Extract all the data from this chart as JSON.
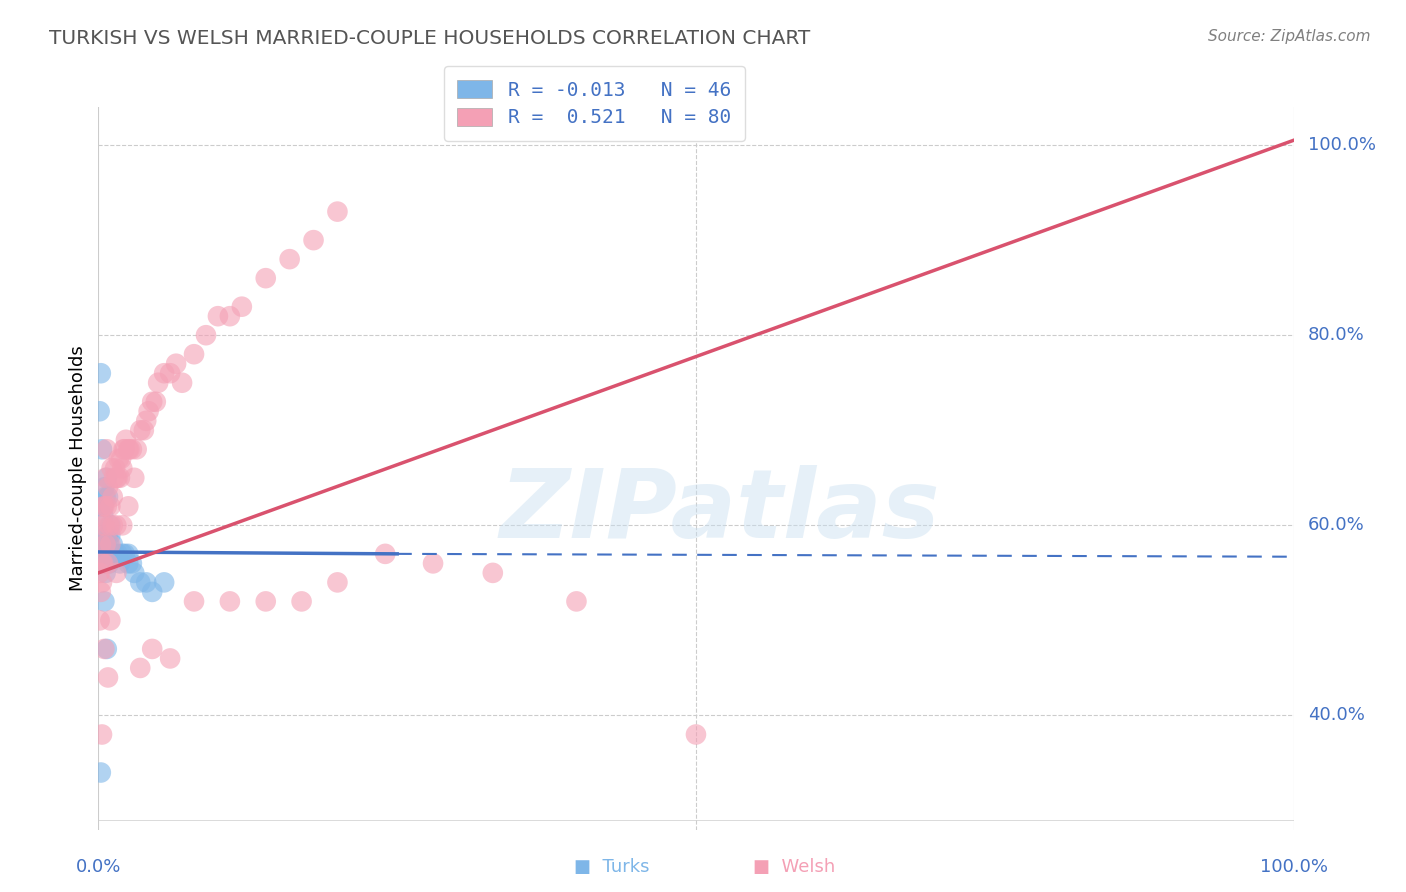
{
  "title": "TURKISH VS WELSH MARRIED-COUPLE HOUSEHOLDS CORRELATION CHART",
  "source": "Source: ZipAtlas.com",
  "ylabel": "Married-couple Households",
  "watermark": "ZIPatlas",
  "turks_R": -0.013,
  "turks_N": 46,
  "welsh_R": 0.521,
  "welsh_N": 80,
  "turks_color": "#7eb6e8",
  "welsh_color": "#f4a0b5",
  "turks_line_color": "#4472c4",
  "welsh_line_color": "#d9526e",
  "blue_text_color": "#4472c4",
  "title_color": "#555555",
  "grid_color": "#cccccc",
  "turks_x": [
    0.001,
    0.001,
    0.002,
    0.002,
    0.002,
    0.003,
    0.003,
    0.003,
    0.004,
    0.004,
    0.004,
    0.005,
    0.005,
    0.005,
    0.006,
    0.006,
    0.006,
    0.007,
    0.007,
    0.007,
    0.008,
    0.008,
    0.009,
    0.009,
    0.01,
    0.011,
    0.012,
    0.013,
    0.014,
    0.016,
    0.018,
    0.02,
    0.022,
    0.025,
    0.025,
    0.028,
    0.03,
    0.035,
    0.04,
    0.045,
    0.002,
    0.007,
    0.005,
    0.01,
    0.055,
    0.002
  ],
  "turks_y": [
    0.72,
    0.57,
    0.57,
    0.56,
    0.62,
    0.68,
    0.58,
    0.56,
    0.62,
    0.59,
    0.61,
    0.64,
    0.57,
    0.56,
    0.63,
    0.58,
    0.55,
    0.65,
    0.57,
    0.56,
    0.63,
    0.59,
    0.58,
    0.56,
    0.59,
    0.57,
    0.58,
    0.57,
    0.57,
    0.57,
    0.56,
    0.57,
    0.57,
    0.56,
    0.57,
    0.56,
    0.55,
    0.54,
    0.54,
    0.53,
    0.76,
    0.47,
    0.52,
    0.6,
    0.54,
    0.34
  ],
  "welsh_x": [
    0.001,
    0.001,
    0.002,
    0.002,
    0.003,
    0.003,
    0.003,
    0.004,
    0.004,
    0.005,
    0.005,
    0.006,
    0.006,
    0.007,
    0.007,
    0.008,
    0.008,
    0.009,
    0.01,
    0.01,
    0.011,
    0.012,
    0.012,
    0.013,
    0.014,
    0.015,
    0.015,
    0.016,
    0.017,
    0.018,
    0.019,
    0.02,
    0.021,
    0.022,
    0.023,
    0.025,
    0.026,
    0.028,
    0.03,
    0.032,
    0.035,
    0.038,
    0.04,
    0.042,
    0.045,
    0.048,
    0.05,
    0.055,
    0.06,
    0.065,
    0.07,
    0.08,
    0.09,
    0.1,
    0.11,
    0.12,
    0.14,
    0.16,
    0.18,
    0.2,
    0.003,
    0.005,
    0.008,
    0.01,
    0.015,
    0.02,
    0.025,
    0.035,
    0.045,
    0.06,
    0.08,
    0.11,
    0.14,
    0.17,
    0.2,
    0.24,
    0.28,
    0.33,
    0.4,
    0.5
  ],
  "welsh_y": [
    0.55,
    0.5,
    0.53,
    0.58,
    0.56,
    0.6,
    0.54,
    0.62,
    0.56,
    0.6,
    0.62,
    0.58,
    0.65,
    0.62,
    0.68,
    0.64,
    0.56,
    0.6,
    0.62,
    0.58,
    0.66,
    0.63,
    0.6,
    0.65,
    0.66,
    0.65,
    0.6,
    0.65,
    0.67,
    0.65,
    0.67,
    0.66,
    0.68,
    0.68,
    0.69,
    0.68,
    0.68,
    0.68,
    0.65,
    0.68,
    0.7,
    0.7,
    0.71,
    0.72,
    0.73,
    0.73,
    0.75,
    0.76,
    0.76,
    0.77,
    0.75,
    0.78,
    0.8,
    0.82,
    0.82,
    0.83,
    0.86,
    0.88,
    0.9,
    0.93,
    0.38,
    0.47,
    0.44,
    0.5,
    0.55,
    0.6,
    0.62,
    0.45,
    0.47,
    0.46,
    0.52,
    0.52,
    0.52,
    0.52,
    0.54,
    0.57,
    0.56,
    0.55,
    0.52,
    0.38
  ],
  "xlim": [
    0.0,
    1.0
  ],
  "ylim": [
    0.28,
    1.04
  ],
  "yticks_right": [
    0.4,
    0.6,
    0.8,
    1.0
  ],
  "ytick_labels_right": [
    "40.0%",
    "60.0%",
    "80.0%",
    "100.0%"
  ],
  "turks_line_x0": 0.0,
  "turks_line_y0": 0.572,
  "turks_line_x1": 0.25,
  "turks_line_y1": 0.57,
  "turks_line_x2": 1.0,
  "turks_line_y2": 0.567,
  "welsh_line_x0": 0.0,
  "welsh_line_y0": 0.55,
  "welsh_line_x1": 1.0,
  "welsh_line_y1": 1.005
}
